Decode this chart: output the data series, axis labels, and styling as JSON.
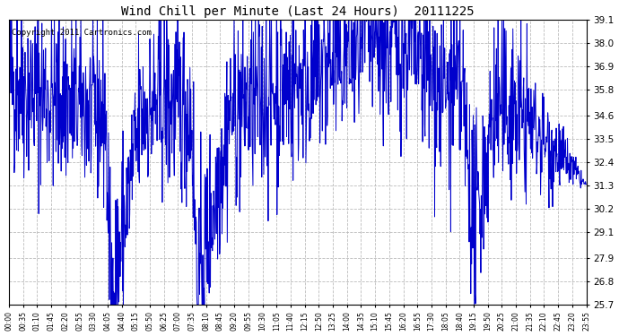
{
  "title": "Wind Chill per Minute (Last 24 Hours)  20111225",
  "copyright": "Copyright 2011 Cartronics.com",
  "line_color": "#0000CC",
  "background_color": "#ffffff",
  "plot_background": "#ffffff",
  "grid_color": "#bbbbbb",
  "ylim": [
    25.7,
    39.1
  ],
  "yticks": [
    25.7,
    26.8,
    27.9,
    29.1,
    30.2,
    31.3,
    32.4,
    33.5,
    34.6,
    35.8,
    36.9,
    38.0,
    39.1
  ],
  "xtick_labels": [
    "00:00",
    "00:35",
    "01:10",
    "01:45",
    "02:20",
    "02:55",
    "03:30",
    "04:05",
    "04:40",
    "05:15",
    "05:50",
    "06:25",
    "07:00",
    "07:35",
    "08:10",
    "08:45",
    "09:20",
    "09:55",
    "10:30",
    "11:05",
    "11:40",
    "12:15",
    "12:50",
    "13:25",
    "14:00",
    "14:35",
    "15:10",
    "15:45",
    "16:20",
    "16:55",
    "17:30",
    "18:05",
    "18:40",
    "19:15",
    "19:50",
    "20:25",
    "21:00",
    "21:35",
    "22:10",
    "22:45",
    "23:20",
    "23:55"
  ],
  "n_minutes": 1440,
  "seed": 42
}
